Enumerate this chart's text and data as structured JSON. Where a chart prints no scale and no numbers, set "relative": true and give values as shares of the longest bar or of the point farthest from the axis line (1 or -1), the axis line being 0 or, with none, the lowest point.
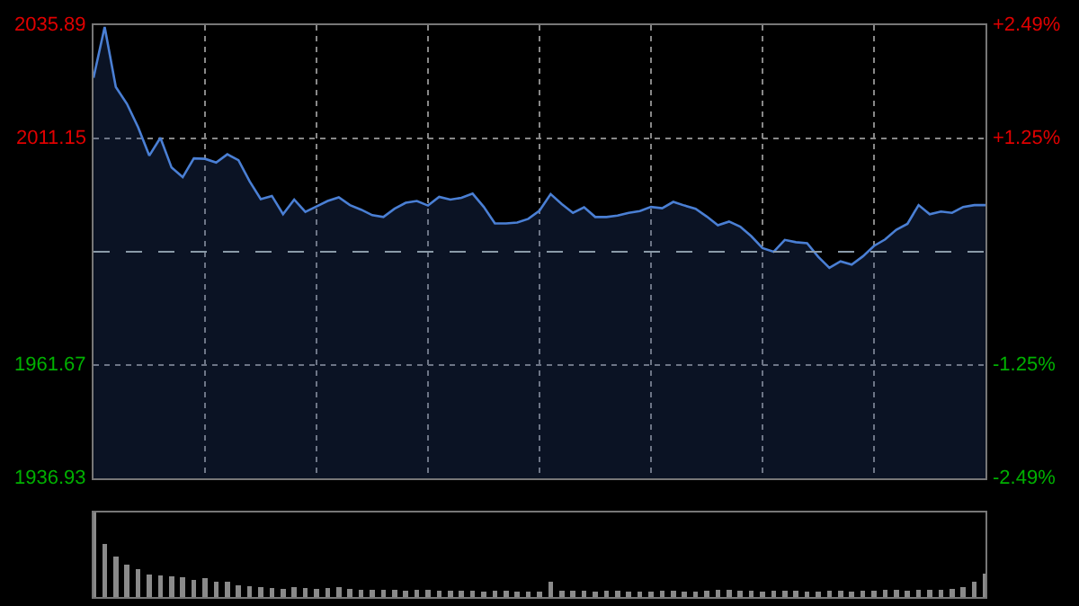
{
  "chart_data": [
    {
      "type": "area",
      "color": "#4a7fd4",
      "categories": [
        null,
        null,
        null,
        null,
        null,
        null,
        null,
        null,
        null,
        null,
        null,
        null,
        null,
        null,
        null,
        null,
        null,
        null,
        null,
        null,
        null,
        null,
        null,
        null,
        null,
        null,
        null,
        null,
        null,
        null,
        null,
        null,
        null,
        null,
        null,
        null,
        null,
        null,
        null,
        null,
        null,
        null,
        null,
        null,
        null,
        null,
        null,
        null,
        null,
        null,
        null,
        null,
        null,
        null,
        null,
        null,
        null,
        null,
        null,
        null,
        null,
        null,
        null,
        null,
        null,
        null,
        null,
        null,
        null,
        null,
        null,
        null,
        null,
        null,
        null,
        null,
        null,
        null,
        null,
        null,
        null
      ],
      "values": [
        2024.4,
        2035.5,
        2022.4,
        2018.7,
        2013.6,
        2007.4,
        2011.3,
        2004.8,
        2002.7,
        2006.8,
        2006.7,
        2005.9,
        2007.7,
        2006.4,
        2001.8,
        1997.9,
        1998.6,
        1994.6,
        1997.8,
        1995.1,
        1996.3,
        1997.5,
        1998.3,
        1996.6,
        1995.6,
        1994.4,
        1994.0,
        1995.8,
        1997.1,
        1997.5,
        1996.5,
        1998.4,
        1997.8,
        1998.2,
        1999.1,
        1996.2,
        1992.6,
        1992.6,
        1992.8,
        1993.6,
        1995.4,
        1999.0,
        1996.8,
        1994.9,
        1996.1,
        1994.0,
        1994.0,
        1994.3,
        1994.9,
        1995.3,
        1996.2,
        1995.9,
        1997.3,
        1996.5,
        1995.8,
        1994.1,
        1992.2,
        1993.0,
        1991.9,
        1989.8,
        1987.2,
        1986.4,
        1989.0,
        1988.5,
        1988.3,
        1985.3,
        1982.9,
        1984.3,
        1983.6,
        1985.4,
        1987.7,
        1989.1,
        1991.2,
        1992.5,
        1996.6,
        1994.6,
        1995.2,
        1994.9,
        1996.2,
        1996.6,
        1996.6
      ],
      "ylim": [
        1936.93,
        2035.89
      ],
      "yticks": [
        1936.93,
        1961.67,
        2011.15,
        2035.89
      ],
      "y2lim": [
        -2.49,
        2.49
      ],
      "y2ticks": [
        {
          "value": -2.49,
          "label": "-2.49%"
        },
        {
          "value": -1.25,
          "label": "-1.25%"
        },
        {
          "value": 1.25,
          "label": "+1.25%"
        },
        {
          "value": 2.49,
          "label": "+2.49%"
        }
      ],
      "ref_lines": [
        {
          "axis": "y",
          "value": 1986.41,
          "line_style": "dashed",
          "color": "#8a9aa8"
        }
      ],
      "grid": true,
      "tick_labels": "y"
    },
    {
      "type": "bar",
      "relative": true,
      "color": "#8a8a8a",
      "tick_labels": false,
      "categories": [
        null,
        null,
        null,
        null,
        null,
        null,
        null,
        null,
        null,
        null,
        null,
        null,
        null,
        null,
        null,
        null,
        null,
        null,
        null,
        null,
        null,
        null,
        null,
        null,
        null,
        null,
        null,
        null,
        null,
        null,
        null,
        null,
        null,
        null,
        null,
        null,
        null,
        null,
        null,
        null,
        null,
        null,
        null,
        null,
        null,
        null,
        null,
        null,
        null,
        null,
        null,
        null,
        null,
        null,
        null,
        null,
        null,
        null,
        null,
        null,
        null,
        null,
        null,
        null,
        null,
        null,
        null,
        null,
        null,
        null,
        null,
        null,
        null,
        null,
        null,
        null,
        null,
        null,
        null,
        null,
        null
      ],
      "values": [
        1,
        0.63,
        0.48,
        0.38,
        0.33,
        0.27,
        0.26,
        0.25,
        0.23,
        0.2,
        0.22,
        0.18,
        0.18,
        0.14,
        0.13,
        0.12,
        0.11,
        0.1,
        0.12,
        0.11,
        0.1,
        0.11,
        0.12,
        0.1,
        0.09,
        0.08,
        0.09,
        0.09,
        0.07,
        0.08,
        0.08,
        0.07,
        0.07,
        0.07,
        0.07,
        0.06,
        0.07,
        0.07,
        0.06,
        0.06,
        0.06,
        0.18,
        0.07,
        0.07,
        0.07,
        0.06,
        0.07,
        0.07,
        0.06,
        0.06,
        0.06,
        0.07,
        0.07,
        0.06,
        0.06,
        0.07,
        0.08,
        0.08,
        0.07,
        0.07,
        0.06,
        0.07,
        0.07,
        0.07,
        0.06,
        0.06,
        0.07,
        0.07,
        0.06,
        0.07,
        0.07,
        0.08,
        0.08,
        0.07,
        0.08,
        0.08,
        0.09,
        0.1,
        0.12,
        0.18,
        0.28
      ]
    }
  ]
}
